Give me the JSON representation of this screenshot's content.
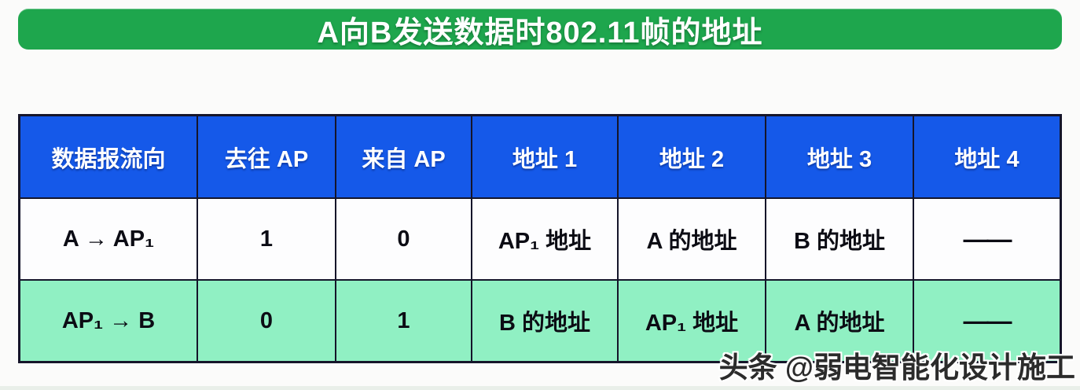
{
  "title": {
    "text": "A向B发送数据时802.11帧的地址",
    "bg_color": "#1ea64d",
    "text_color": "#ffffff"
  },
  "table": {
    "border_color": "#15152a",
    "header": {
      "bg_color": "#1559e9",
      "text_color": "#ffffff",
      "columns": [
        "数据报流向",
        "去往 AP",
        "来自 AP",
        "地址 1",
        "地址 2",
        "地址 3",
        "地址 4"
      ]
    },
    "rows": [
      {
        "bg_color": "#fdfdfe",
        "cells": [
          "A → AP₁",
          "1",
          "0",
          "AP₁ 地址",
          "A 的地址",
          "B 的地址",
          "——"
        ]
      },
      {
        "bg_color": "#90f0c3",
        "cells": [
          "AP₁ → B",
          "0",
          "1",
          "B 的地址",
          "AP₁ 地址",
          "A 的地址",
          "——"
        ]
      }
    ]
  },
  "watermark": {
    "text": "头条 @弱电智能化设计施工"
  },
  "page": {
    "bg_color": "#fbfbfa"
  }
}
